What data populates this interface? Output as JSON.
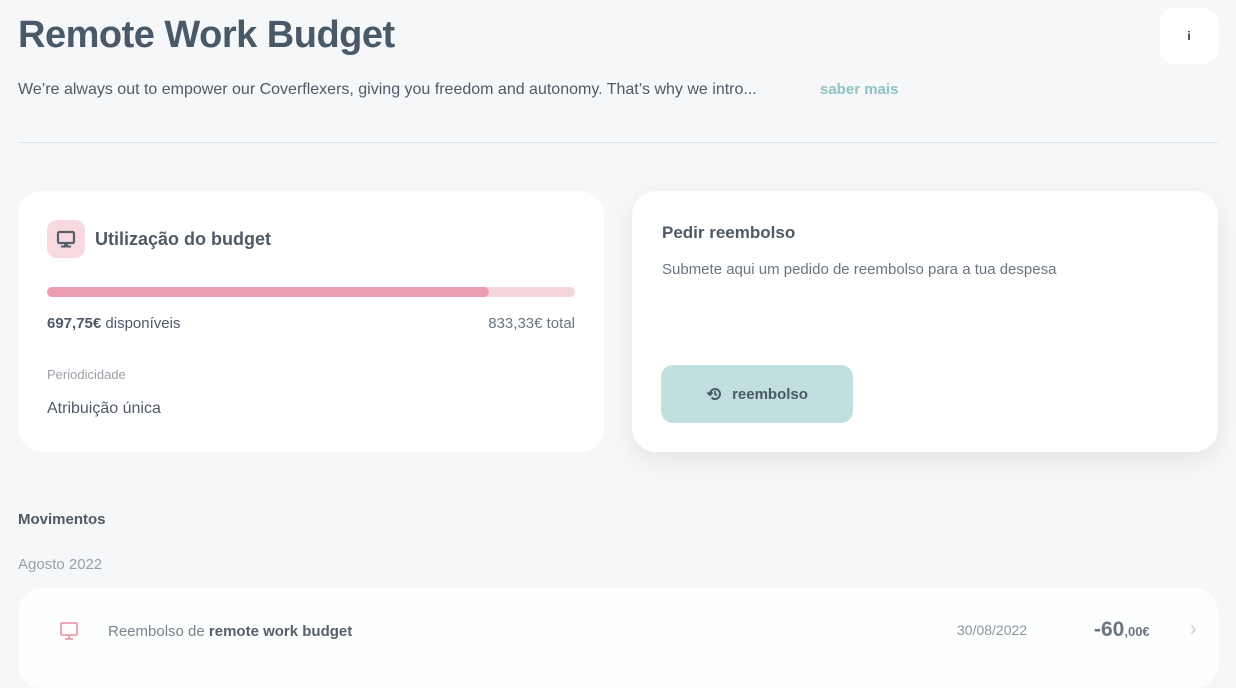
{
  "header": {
    "title": "Remote Work Budget",
    "info_label": "i",
    "description": "We’re always out to empower our Coverflexers, giving you freedom and autonomy. That’s why we intro...",
    "more_link": "saber mais"
  },
  "budget": {
    "icon": "monitor-icon",
    "title": "Utilização do budget",
    "available_amount": "697,75€",
    "available_suffix": " disponíveis",
    "total": "833,33€ total",
    "progress": 0.837,
    "periodicity_label": "Periodicidade",
    "periodicity_value": "Atribuição única"
  },
  "refund": {
    "title": "Pedir reembolso",
    "description": "Submete aqui um pedido de reembolso para a tua despesa",
    "button_label": "reembolso",
    "button_icon": "history-icon"
  },
  "movements": {
    "title": "Movimentos",
    "groups": [
      {
        "month": "Agosto 2022",
        "items": [
          {
            "icon": "monitor-icon",
            "label_prefix": "Reembolso de ",
            "label_bold": "remote work budget",
            "date": "30/08/2022",
            "amount_int": "-60",
            "amount_dec": ",00€"
          }
        ]
      }
    ]
  },
  "colors": {
    "accent": "#8fc3c2",
    "progress": "#ec9daf",
    "progress_track": "#f6d6dd",
    "button": "#c1dfdf"
  }
}
